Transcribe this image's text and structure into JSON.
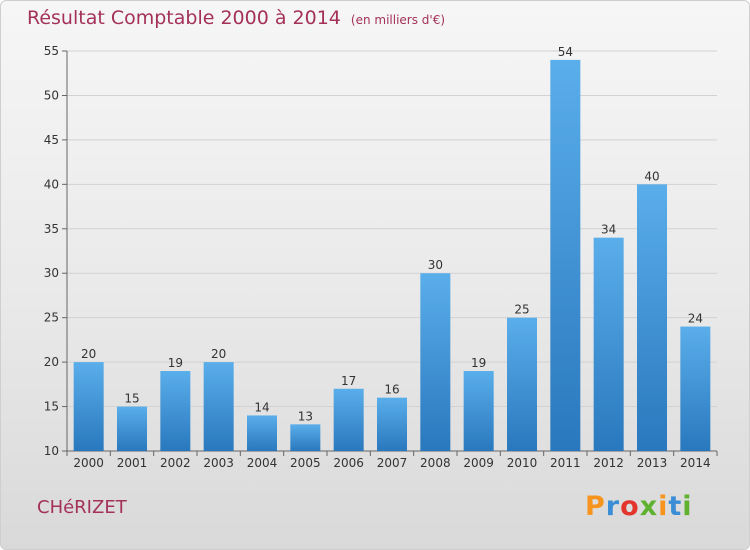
{
  "header": {
    "title": "Résultat Comptable 2000 à 2014",
    "unit": "(en milliers d'€)"
  },
  "footer": {
    "place": "CHéRIZET",
    "brand": "Proxiti",
    "brand_letters": [
      "P",
      "r",
      "o",
      "x",
      "i",
      "t",
      "i"
    ],
    "brand_colors": [
      "#f7941d",
      "#3b8ed6",
      "#e2352c",
      "#5fb230",
      "#f7941d",
      "#3b8ed6",
      "#5fb230"
    ]
  },
  "colors": {
    "text_accent": "#a4315a",
    "bar": "#3d8fd4",
    "bar_light": "#5aaeea",
    "bar_dark": "#2978be"
  },
  "chart_data": {
    "type": "bar",
    "title": "Résultat Comptable 2000 à 2014",
    "subtitle": "(en milliers d'€)",
    "categories": [
      "2000",
      "2001",
      "2002",
      "2003",
      "2004",
      "2005",
      "2006",
      "2007",
      "2008",
      "2009",
      "2010",
      "2011",
      "2012",
      "2013",
      "2014"
    ],
    "values": [
      20,
      15,
      19,
      20,
      14,
      13,
      17,
      16,
      30,
      19,
      25,
      54,
      34,
      40,
      24
    ],
    "ylim": [
      10,
      55
    ],
    "yticks": [
      10,
      15,
      20,
      25,
      30,
      35,
      40,
      45,
      50,
      55
    ],
    "grid": true,
    "data_labels": true
  }
}
